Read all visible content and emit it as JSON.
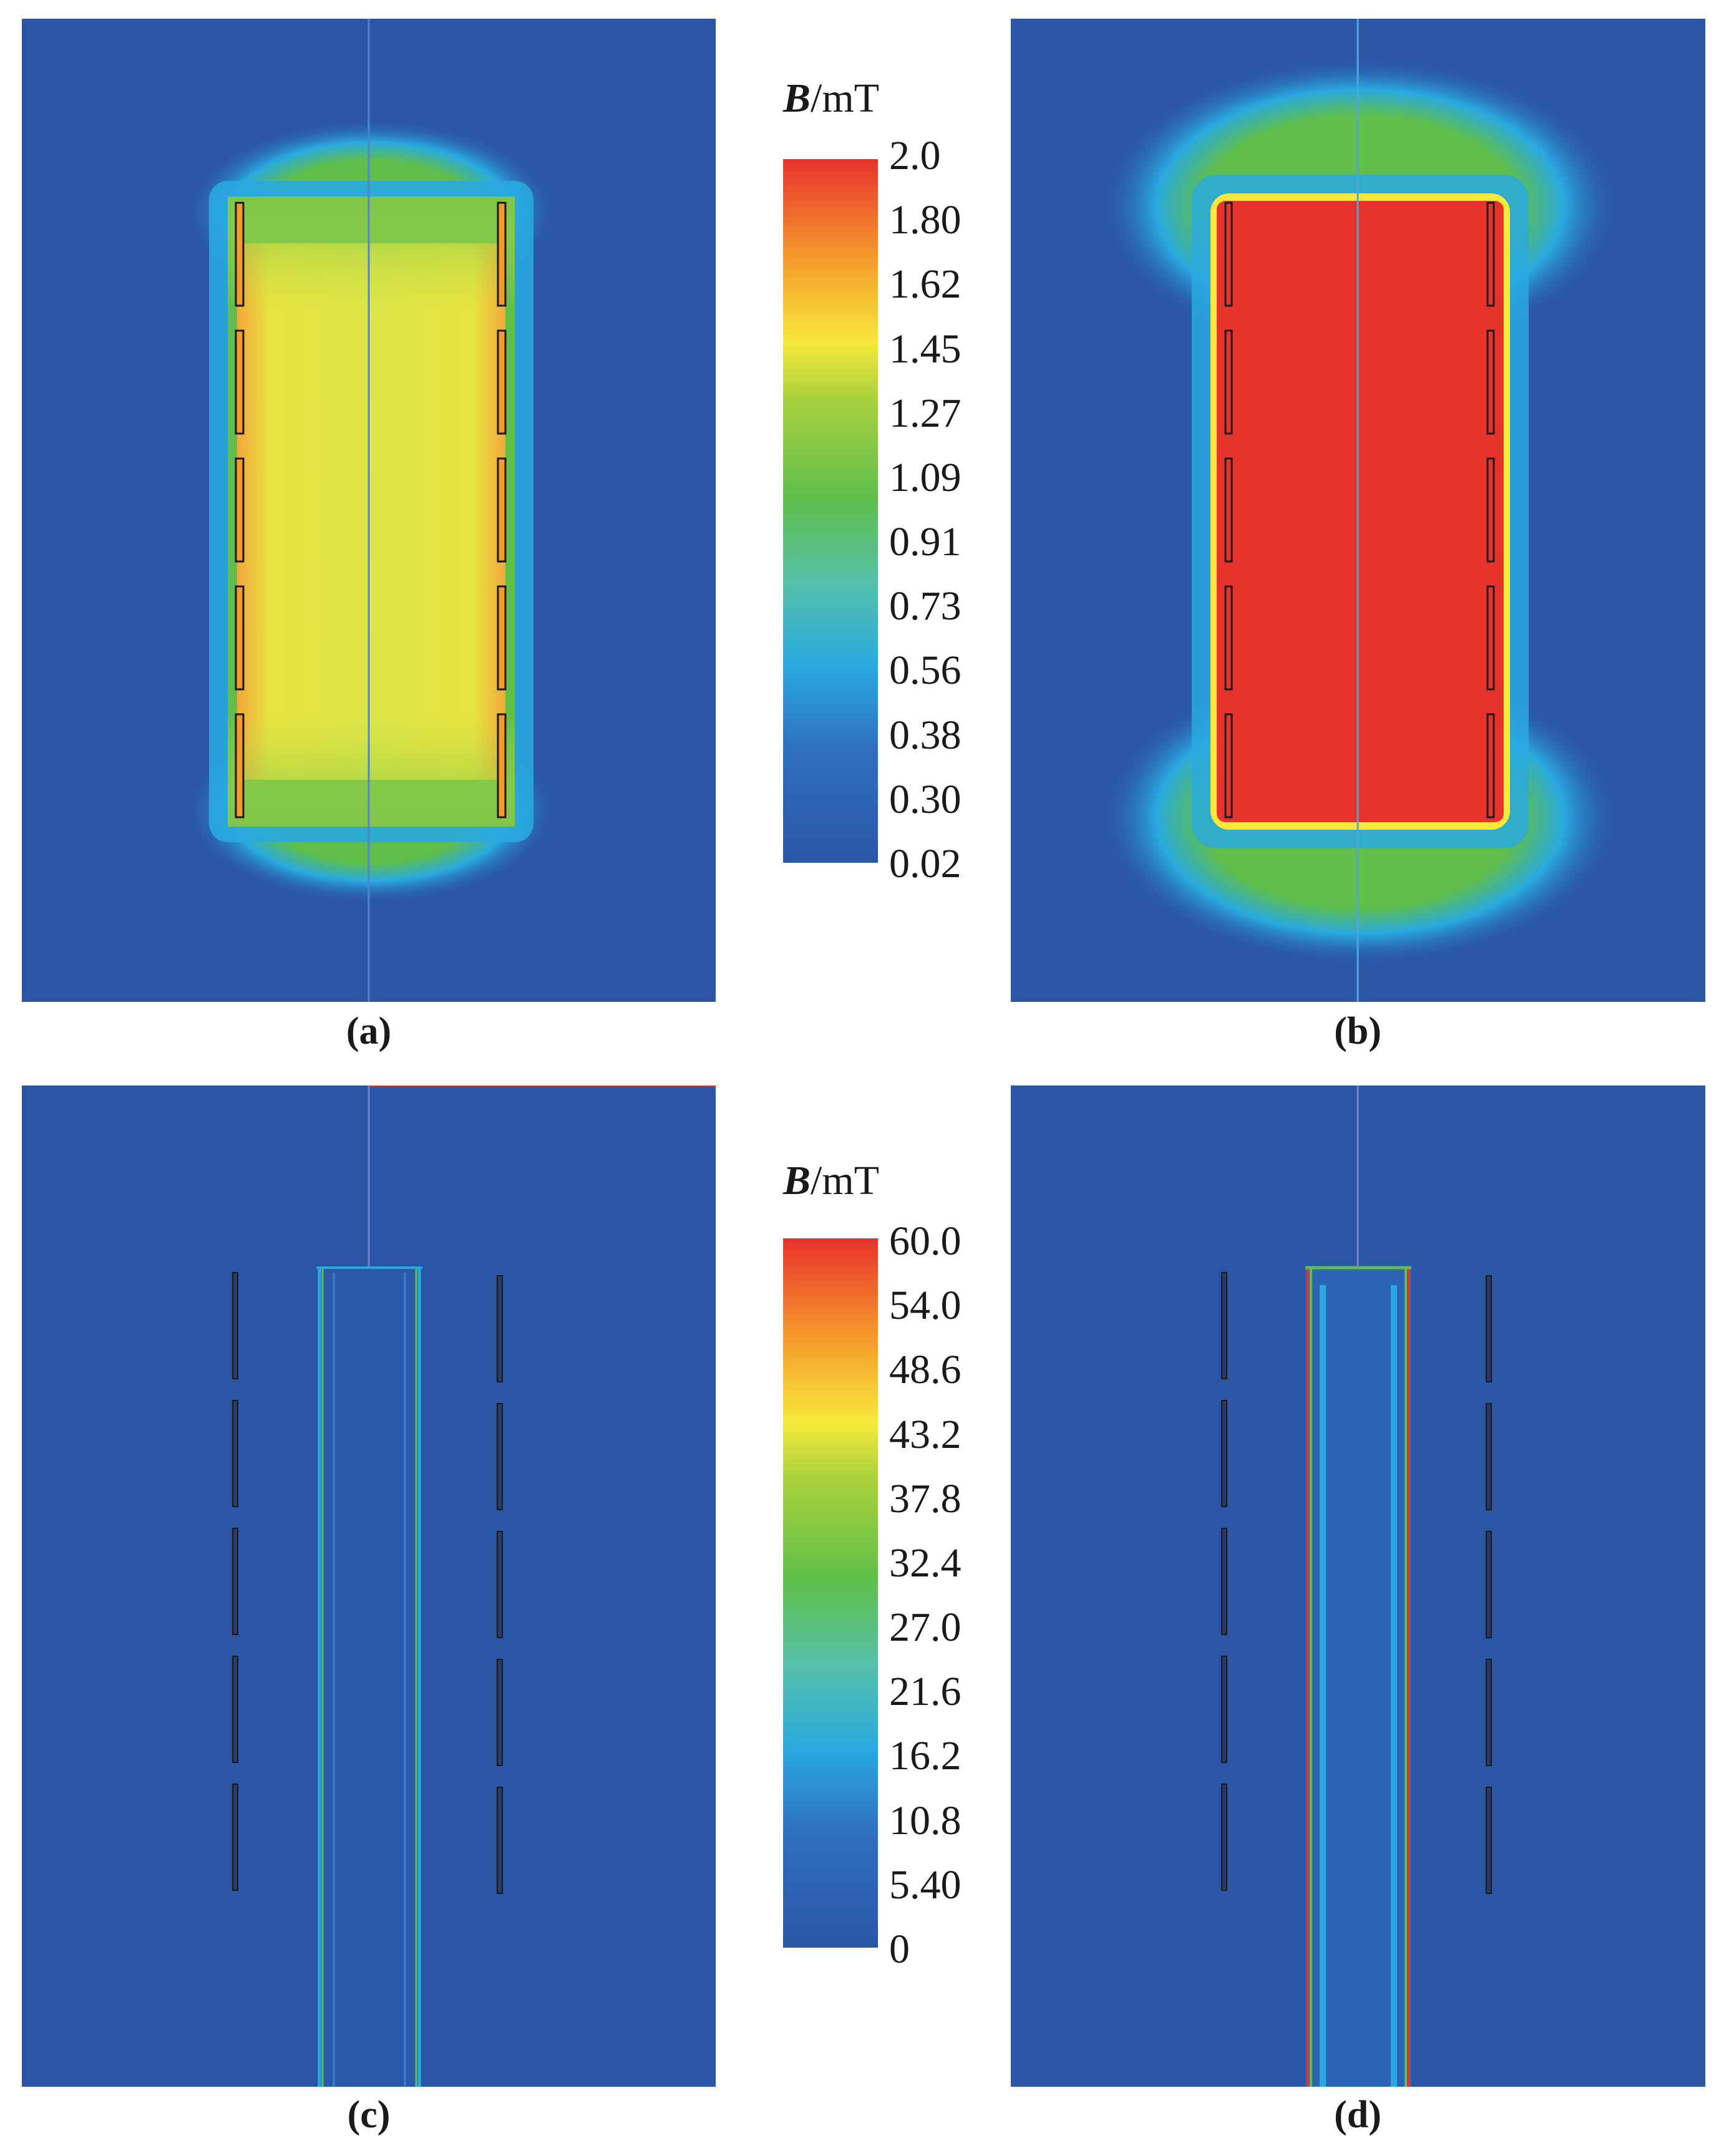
{
  "panels": [
    {
      "id": "a",
      "label": "(a)"
    },
    {
      "id": "b",
      "label": "(b)"
    },
    {
      "id": "c",
      "label": "(c)"
    },
    {
      "id": "d",
      "label": "(d)"
    }
  ],
  "colorbar_top": {
    "symbol": "B",
    "unit": "/mT",
    "ticks": [
      "2.0",
      "1.80",
      "1.62",
      "1.45",
      "1.27",
      "1.09",
      "0.91",
      "0.73",
      "0.56",
      "0.38",
      "0.30",
      "0.02"
    ]
  },
  "colorbar_bottom": {
    "symbol": "B",
    "unit": "/mT",
    "ticks": [
      "60.0",
      "54.0",
      "48.6",
      "43.2",
      "37.8",
      "32.4",
      "27.0",
      "21.6",
      "16.2",
      "10.8",
      "5.40",
      "0"
    ]
  },
  "colors": {
    "background_field": "#2b56a6",
    "colormap": [
      "#2b56a6",
      "#29a9e0",
      "#5fbf4a",
      "#f6e93a",
      "#f59a2b",
      "#e8322c"
    ]
  }
}
